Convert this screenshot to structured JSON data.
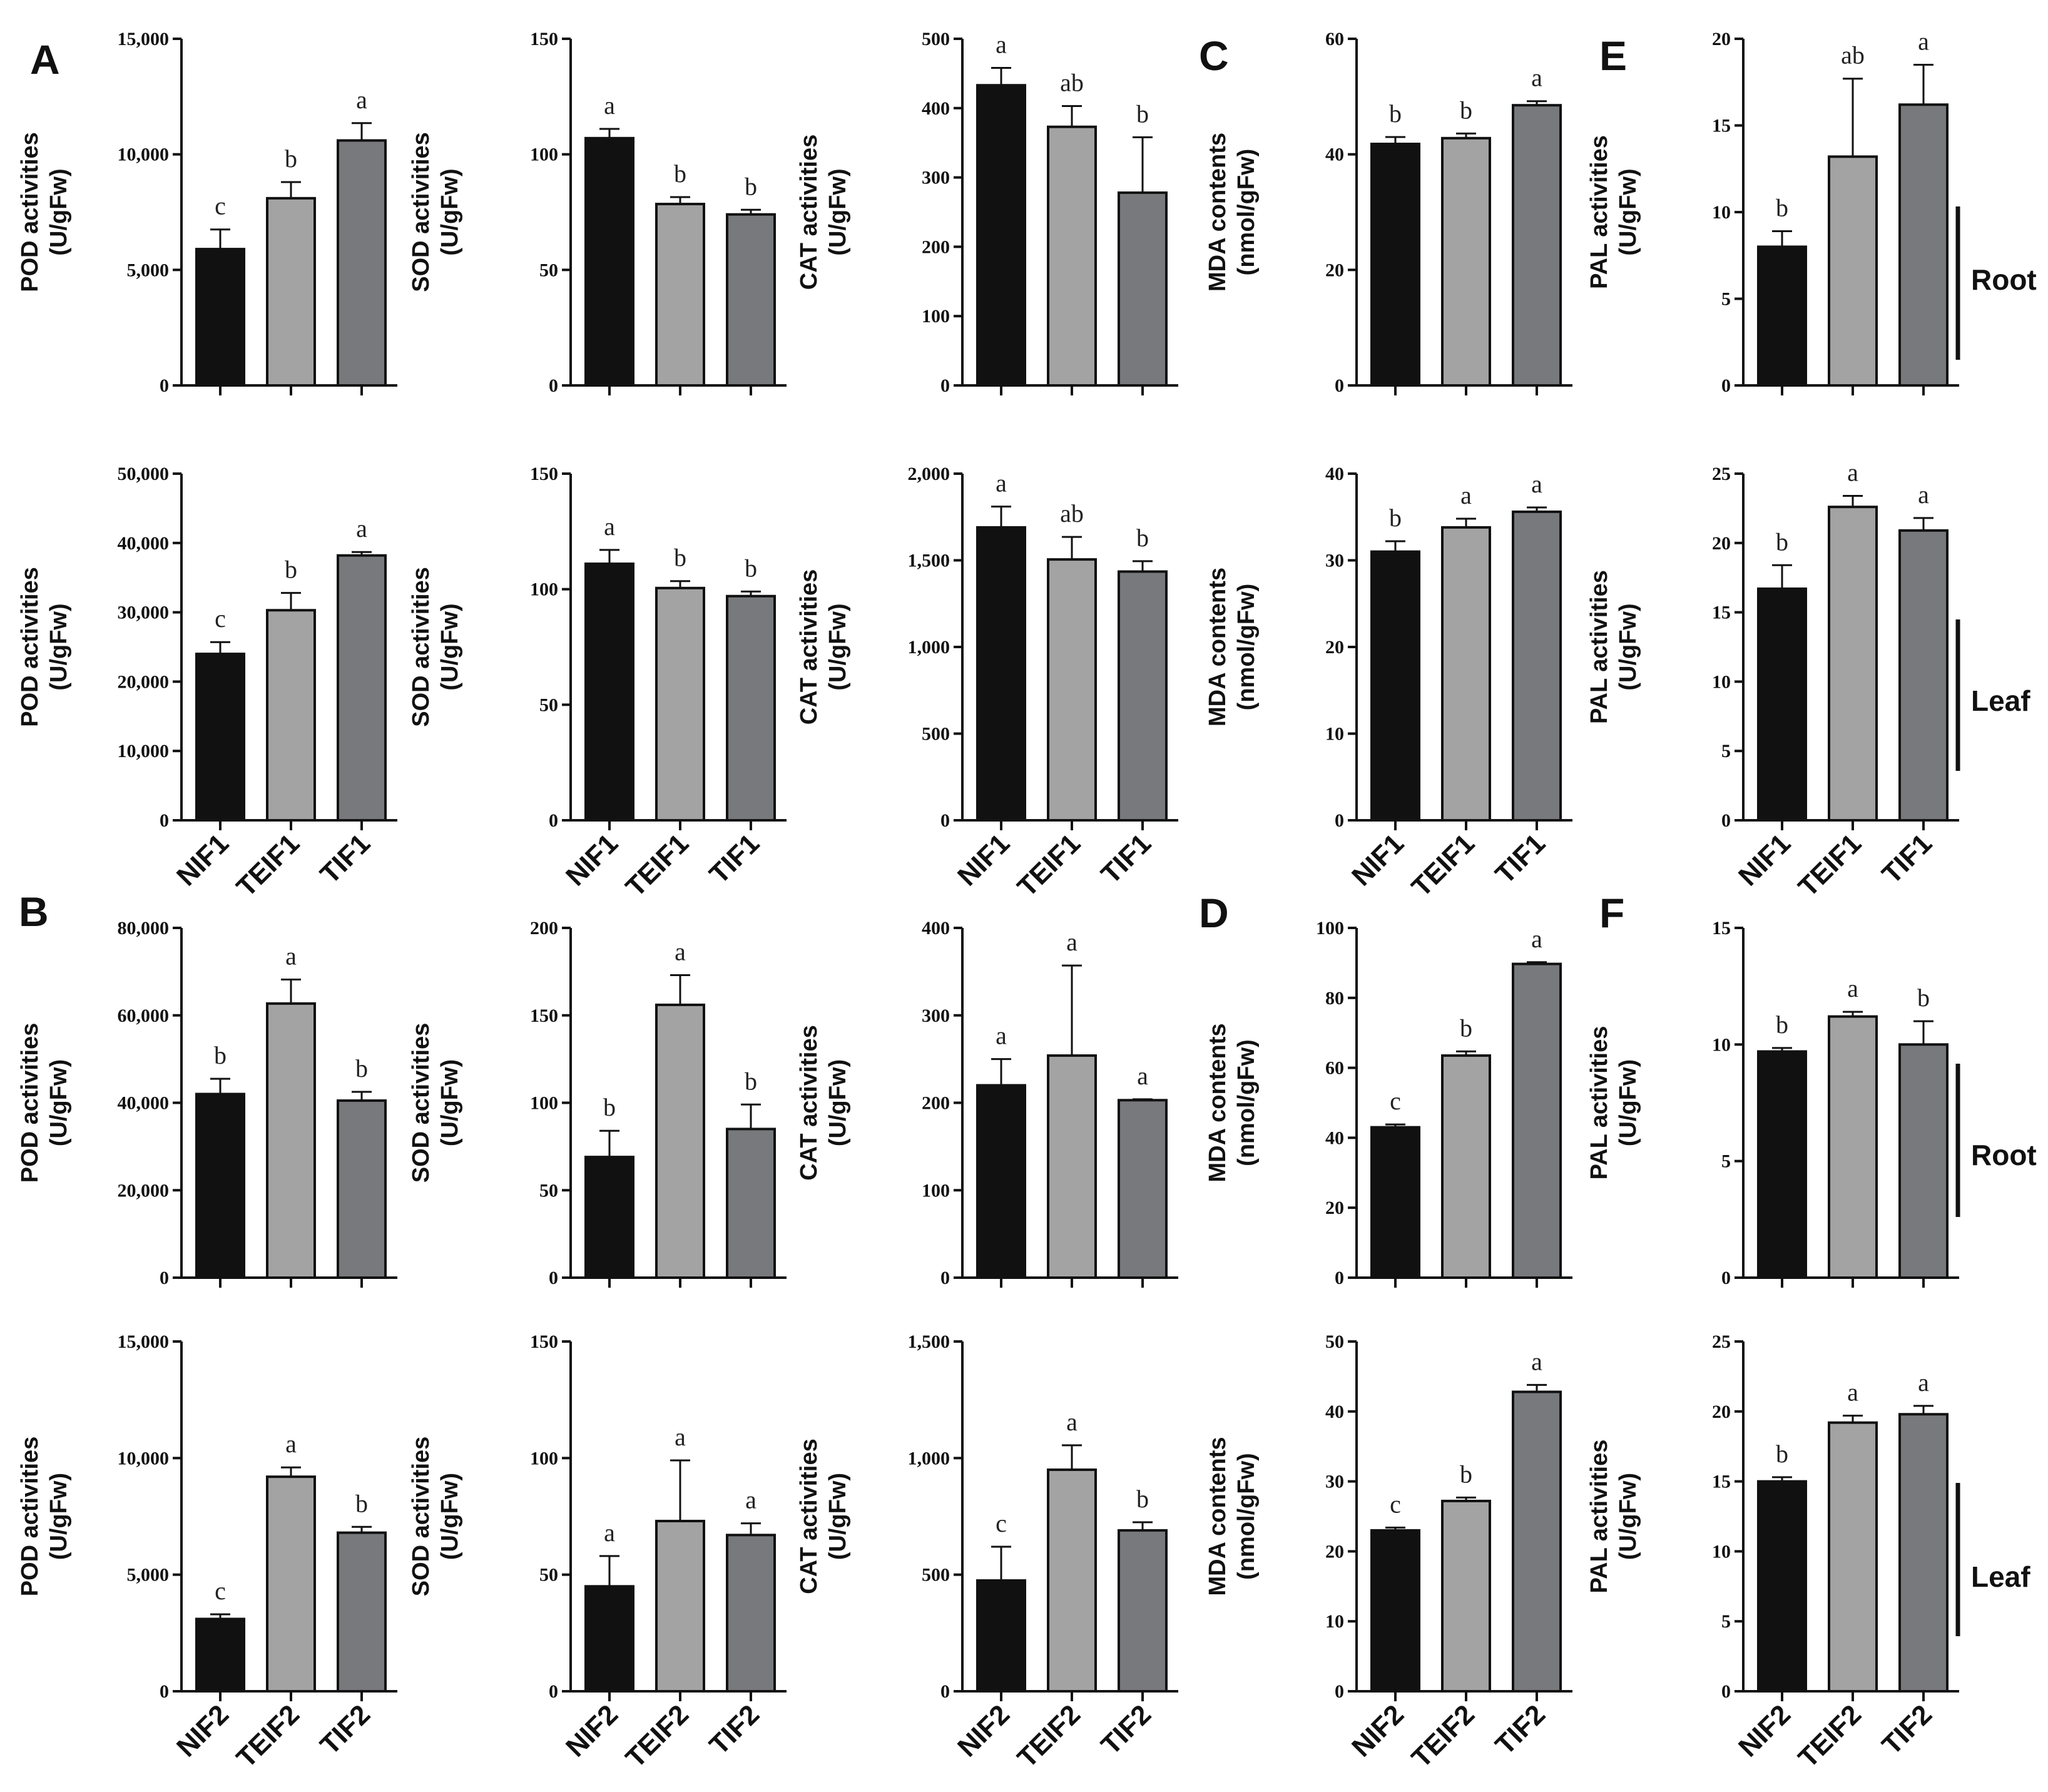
{
  "colors": {
    "bar1": "#111111",
    "bar2": "#a3a3a3",
    "bar3": "#77797c",
    "axis": "#111111"
  },
  "panel_letters": [
    "A",
    "B",
    "C",
    "D",
    "E",
    "F"
  ],
  "organ_labels": [
    "Root",
    "Leaf",
    "Root",
    "Leaf"
  ],
  "chart_data": [
    {
      "type": "bar",
      "group": "A",
      "organ": "Root",
      "ylabel": [
        "POD activities",
        "(U/gFw)"
      ],
      "categories": [
        "NIF1",
        "TEIF1",
        "TIF1"
      ],
      "show_categories": false,
      "ylim": [
        0,
        15000
      ],
      "ticks": [
        0,
        5000,
        10000,
        15000
      ],
      "tick_labels": [
        "0",
        "5,000",
        "10,000",
        "15,000"
      ],
      "values": [
        5900,
        8100,
        10600
      ],
      "errors": [
        850,
        700,
        750
      ],
      "letters": [
        "c",
        "b",
        "a"
      ]
    },
    {
      "type": "bar",
      "group": "A",
      "organ": "Root",
      "ylabel": [
        "SOD activities",
        "(U/gFw)"
      ],
      "categories": [
        "NIF1",
        "TEIF1",
        "TIF1"
      ],
      "show_categories": false,
      "ylim": [
        0,
        150
      ],
      "ticks": [
        0,
        50,
        100,
        150
      ],
      "tick_labels": [
        "0",
        "50",
        "100",
        "150"
      ],
      "values": [
        107,
        78.5,
        74
      ],
      "errors": [
        4,
        3,
        2
      ],
      "letters": [
        "a",
        "b",
        "b"
      ]
    },
    {
      "type": "bar",
      "group": "A",
      "organ": "Root",
      "ylabel": [
        "CAT activities",
        "(U/gFw)"
      ],
      "categories": [
        "NIF1",
        "TEIF1",
        "TIF1"
      ],
      "show_categories": false,
      "ylim": [
        0,
        500
      ],
      "ticks": [
        0,
        100,
        200,
        300,
        400,
        500
      ],
      "tick_labels": [
        "0",
        "100",
        "200",
        "300",
        "400",
        "500"
      ],
      "values": [
        433,
        373,
        278
      ],
      "errors": [
        25,
        30,
        80
      ],
      "letters": [
        "a",
        "ab",
        "b"
      ]
    },
    {
      "type": "bar",
      "group": "C",
      "organ": "Root",
      "ylabel": [
        "MDA contents",
        "(nmol/gFw)"
      ],
      "categories": [
        "NIF1",
        "TEIF1",
        "TIF1"
      ],
      "show_categories": false,
      "ylim": [
        0,
        60
      ],
      "ticks": [
        0,
        20,
        40,
        60
      ],
      "tick_labels": [
        "0",
        "20",
        "40",
        "60"
      ],
      "values": [
        41.8,
        42.8,
        48.5
      ],
      "errors": [
        1.2,
        0.8,
        0.7
      ],
      "letters": [
        "b",
        "b",
        "a"
      ]
    },
    {
      "type": "bar",
      "group": "E",
      "organ": "Root",
      "ylabel": [
        "PAL activities",
        "(U/gFw)"
      ],
      "categories": [
        "NIF1",
        "TEIF1",
        "TIF1"
      ],
      "show_categories": false,
      "ylim": [
        0,
        20
      ],
      "ticks": [
        0,
        5,
        10,
        15,
        20
      ],
      "tick_labels": [
        "0",
        "5",
        "10",
        "15",
        "20"
      ],
      "values": [
        8,
        13.2,
        16.2
      ],
      "errors": [
        0.9,
        4.5,
        2.3
      ],
      "letters": [
        "b",
        "ab",
        "a"
      ]
    },
    {
      "type": "bar",
      "group": "A",
      "organ": "Leaf",
      "ylabel": [
        "POD activities",
        "(U/gFw)"
      ],
      "categories": [
        "NIF1",
        "TEIF1",
        "TIF1"
      ],
      "show_categories": true,
      "ylim": [
        0,
        50000
      ],
      "ticks": [
        0,
        10000,
        20000,
        30000,
        40000,
        50000
      ],
      "tick_labels": [
        "0",
        "10,000",
        "20,000",
        "30,000",
        "40,000",
        "50,000"
      ],
      "values": [
        24000,
        30300,
        38200
      ],
      "errors": [
        1700,
        2500,
        500
      ],
      "letters": [
        "c",
        "b",
        "a"
      ]
    },
    {
      "type": "bar",
      "group": "A",
      "organ": "Leaf",
      "ylabel": [
        "SOD activities",
        "(U/gFw)"
      ],
      "categories": [
        "NIF1",
        "TEIF1",
        "TIF1"
      ],
      "show_categories": true,
      "ylim": [
        0,
        150
      ],
      "ticks": [
        0,
        50,
        100,
        150
      ],
      "tick_labels": [
        "0",
        "50",
        "100",
        "150"
      ],
      "values": [
        111,
        100.5,
        97
      ],
      "errors": [
        6,
        3,
        2
      ],
      "letters": [
        "a",
        "b",
        "b"
      ]
    },
    {
      "type": "bar",
      "group": "A",
      "organ": "Leaf",
      "ylabel": [
        "CAT activities",
        "(U/gFw)"
      ],
      "categories": [
        "NIF1",
        "TEIF1",
        "TIF1"
      ],
      "show_categories": true,
      "ylim": [
        0,
        2000
      ],
      "ticks": [
        0,
        500,
        1000,
        1500,
        2000
      ],
      "tick_labels": [
        "0",
        "500",
        "1,000",
        "1,500",
        "2,000"
      ],
      "values": [
        1690,
        1505,
        1435
      ],
      "errors": [
        120,
        130,
        60
      ],
      "letters": [
        "a",
        "ab",
        "b"
      ]
    },
    {
      "type": "bar",
      "group": "C",
      "organ": "Leaf",
      "ylabel": [
        "MDA contents",
        "(nmol/gFw)"
      ],
      "categories": [
        "NIF1",
        "TEIF1",
        "TIF1"
      ],
      "show_categories": true,
      "ylim": [
        0,
        40
      ],
      "ticks": [
        0,
        10,
        20,
        30,
        40
      ],
      "tick_labels": [
        "0",
        "10",
        "20",
        "30",
        "40"
      ],
      "values": [
        31,
        33.8,
        35.6
      ],
      "errors": [
        1.2,
        1,
        0.5
      ],
      "letters": [
        "b",
        "a",
        "a"
      ]
    },
    {
      "type": "bar",
      "group": "E",
      "organ": "Leaf",
      "ylabel": [
        "PAL activities",
        "(U/gFw)"
      ],
      "categories": [
        "NIF1",
        "TEIF1",
        "TIF1"
      ],
      "show_categories": true,
      "ylim": [
        0,
        25
      ],
      "ticks": [
        0,
        5,
        10,
        15,
        20,
        25
      ],
      "tick_labels": [
        "0",
        "5",
        "10",
        "15",
        "20",
        "25"
      ],
      "values": [
        16.7,
        22.6,
        20.9
      ],
      "errors": [
        1.7,
        0.8,
        0.9
      ],
      "letters": [
        "b",
        "a",
        "a"
      ]
    },
    {
      "type": "bar",
      "group": "B",
      "organ": "Root",
      "ylabel": [
        "POD activities",
        "(U/gFw)"
      ],
      "categories": [
        "NIF2",
        "TEIF2",
        "TIF2"
      ],
      "show_categories": false,
      "ylim": [
        0,
        80000
      ],
      "ticks": [
        0,
        20000,
        40000,
        60000,
        80000
      ],
      "tick_labels": [
        "0",
        "20,000",
        "40,000",
        "60,000",
        "80,000"
      ],
      "values": [
        42000,
        62700,
        40500
      ],
      "errors": [
        3500,
        5500,
        2000
      ],
      "letters": [
        "b",
        "a",
        "b"
      ]
    },
    {
      "type": "bar",
      "group": "B",
      "organ": "Root",
      "ylabel": [
        "SOD activities",
        "(U/gFw)"
      ],
      "categories": [
        "NIF2",
        "TEIF2",
        "TIF2"
      ],
      "show_categories": false,
      "ylim": [
        0,
        200
      ],
      "ticks": [
        0,
        50,
        100,
        150,
        200
      ],
      "tick_labels": [
        "0",
        "50",
        "100",
        "150",
        "200"
      ],
      "values": [
        69,
        156,
        85
      ],
      "errors": [
        15,
        17,
        14
      ],
      "letters": [
        "b",
        "a",
        "b"
      ]
    },
    {
      "type": "bar",
      "group": "B",
      "organ": "Root",
      "ylabel": [
        "CAT activities",
        "(U/gFw)"
      ],
      "categories": [
        "NIF2",
        "TEIF2",
        "TIF2"
      ],
      "show_categories": false,
      "ylim": [
        0,
        400
      ],
      "ticks": [
        0,
        100,
        200,
        300,
        400
      ],
      "tick_labels": [
        "0",
        "100",
        "200",
        "300",
        "400"
      ],
      "values": [
        220,
        254,
        203
      ],
      "errors": [
        30,
        103,
        1
      ],
      "letters": [
        "a",
        "a",
        "a"
      ]
    },
    {
      "type": "bar",
      "group": "D",
      "organ": "Root",
      "ylabel": [
        "MDA contents",
        "(nmol/gFw)"
      ],
      "categories": [
        "NIF2",
        "TEIF2",
        "TIF2"
      ],
      "show_categories": false,
      "ylim": [
        0,
        100
      ],
      "ticks": [
        0,
        20,
        40,
        60,
        80,
        100
      ],
      "tick_labels": [
        "0",
        "20",
        "40",
        "60",
        "80",
        "100"
      ],
      "values": [
        43,
        63.5,
        89.7
      ],
      "errors": [
        0.8,
        1.2,
        0.5
      ],
      "letters": [
        "c",
        "b",
        "a"
      ]
    },
    {
      "type": "bar",
      "group": "F",
      "organ": "Root",
      "ylabel": [
        "PAL activities",
        "(U/gFw)"
      ],
      "categories": [
        "NIF2",
        "TEIF2",
        "TIF2"
      ],
      "show_categories": false,
      "ylim": [
        0,
        15
      ],
      "ticks": [
        0,
        5,
        10,
        15
      ],
      "tick_labels": [
        "0",
        "5",
        "10",
        "15"
      ],
      "values": [
        9.7,
        11.2,
        10
      ],
      "errors": [
        0.15,
        0.2,
        1
      ],
      "letters": [
        "b",
        "a",
        "b"
      ]
    },
    {
      "type": "bar",
      "group": "B",
      "organ": "Leaf",
      "ylabel": [
        "POD activities",
        "(U/gFw)"
      ],
      "categories": [
        "NIF2",
        "TEIF2",
        "TIF2"
      ],
      "show_categories": true,
      "ylim": [
        0,
        15000
      ],
      "ticks": [
        0,
        5000,
        10000,
        15000
      ],
      "tick_labels": [
        "0",
        "5,000",
        "10,000",
        "15,000"
      ],
      "values": [
        3100,
        9200,
        6800
      ],
      "errors": [
        200,
        400,
        250
      ],
      "letters": [
        "c",
        "a",
        "b"
      ]
    },
    {
      "type": "bar",
      "group": "B",
      "organ": "Leaf",
      "ylabel": [
        "SOD activities",
        "(U/gFw)"
      ],
      "categories": [
        "NIF2",
        "TEIF2",
        "TIF2"
      ],
      "show_categories": true,
      "ylim": [
        0,
        150
      ],
      "ticks": [
        0,
        50,
        100,
        150
      ],
      "tick_labels": [
        "0",
        "50",
        "100",
        "150"
      ],
      "values": [
        45,
        73,
        67
      ],
      "errors": [
        13,
        26,
        5
      ],
      "letters": [
        "a",
        "a",
        "a"
      ]
    },
    {
      "type": "bar",
      "group": "B",
      "organ": "Leaf",
      "ylabel": [
        "CAT activities",
        "(U/gFw)"
      ],
      "categories": [
        "NIF2",
        "TEIF2",
        "TIF2"
      ],
      "show_categories": true,
      "ylim": [
        0,
        1500
      ],
      "ticks": [
        0,
        500,
        1000,
        1500
      ],
      "tick_labels": [
        "0",
        "500",
        "1,000",
        "1,500"
      ],
      "values": [
        475,
        950,
        690
      ],
      "errors": [
        145,
        105,
        35
      ],
      "letters": [
        "c",
        "a",
        "b"
      ]
    },
    {
      "type": "bar",
      "group": "D",
      "organ": "Leaf",
      "ylabel": [
        "MDA contents",
        "(nmol/gFw)"
      ],
      "categories": [
        "NIF2",
        "TEIF2",
        "TIF2"
      ],
      "show_categories": true,
      "ylim": [
        0,
        50
      ],
      "ticks": [
        0,
        10,
        20,
        30,
        40,
        50
      ],
      "tick_labels": [
        "0",
        "10",
        "20",
        "30",
        "40",
        "50"
      ],
      "values": [
        23,
        27.2,
        42.8
      ],
      "errors": [
        0.4,
        0.5,
        1
      ],
      "letters": [
        "c",
        "b",
        "a"
      ]
    },
    {
      "type": "bar",
      "group": "F",
      "organ": "Leaf",
      "ylabel": [
        "PAL activities",
        "(U/gFw)"
      ],
      "categories": [
        "NIF2",
        "TEIF2",
        "TIF2"
      ],
      "show_categories": true,
      "ylim": [
        0,
        25
      ],
      "ticks": [
        0,
        5,
        10,
        15,
        20,
        25
      ],
      "tick_labels": [
        "0",
        "5",
        "10",
        "15",
        "20",
        "25"
      ],
      "values": [
        15,
        19.2,
        19.8
      ],
      "errors": [
        0.3,
        0.5,
        0.6
      ],
      "letters": [
        "b",
        "a",
        "a"
      ]
    }
  ]
}
